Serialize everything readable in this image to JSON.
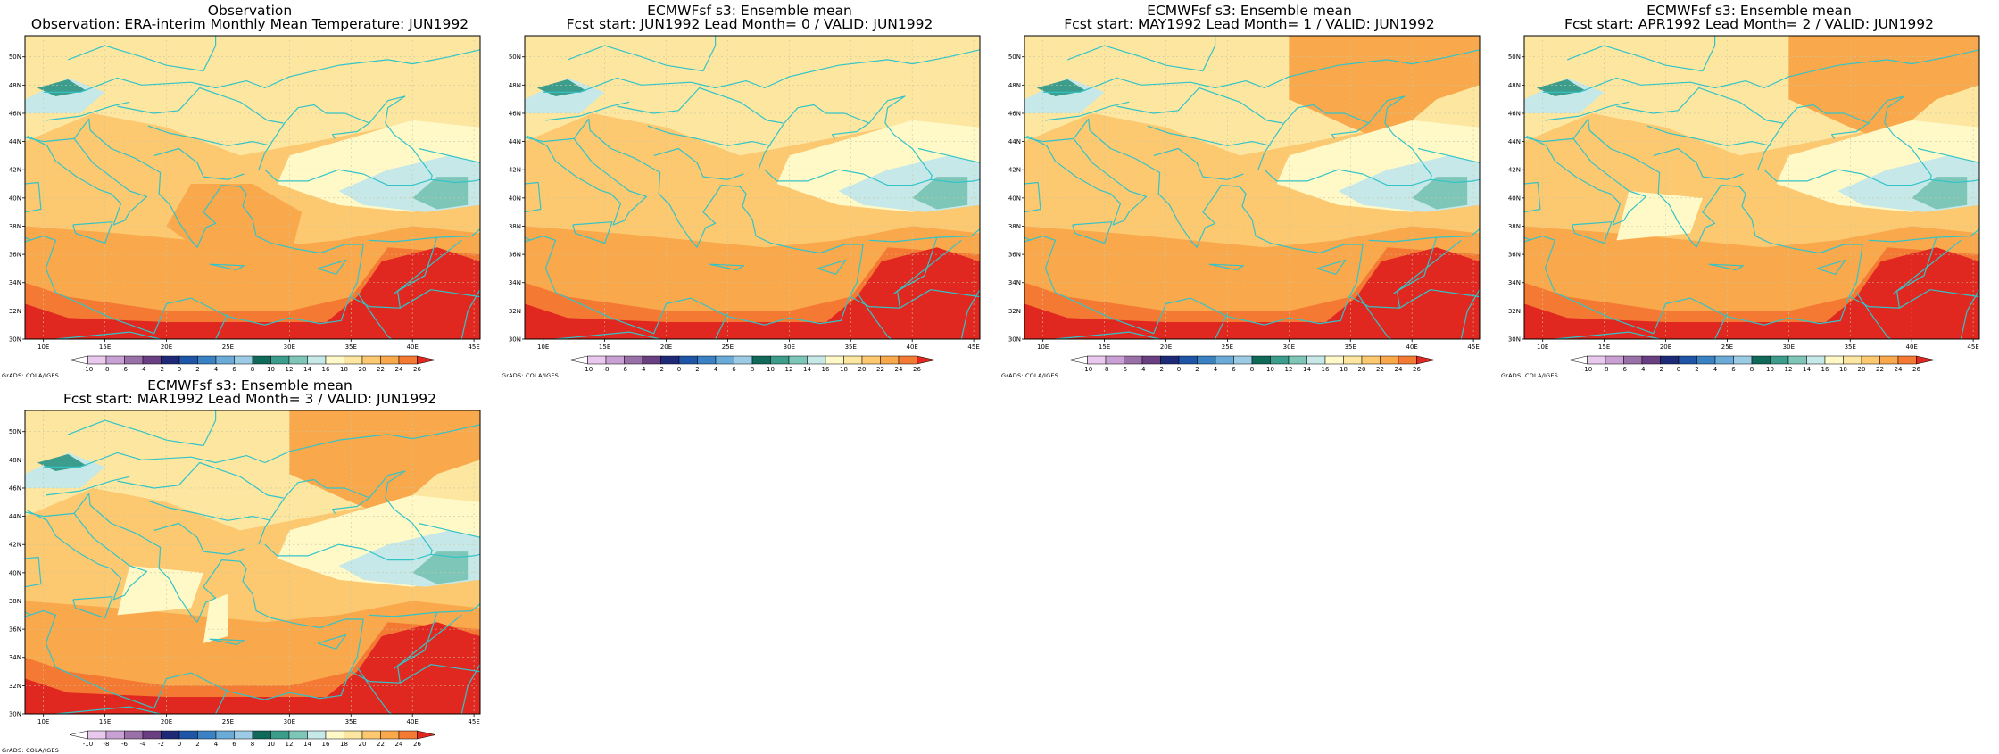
{
  "panels": [
    {
      "title_line1": "Observation",
      "title_line2": "Observation: ERA-interim Monthly Mean Temperature: JUN1992",
      "variant": 0
    },
    {
      "title_line1": "ECMWFsf s3: Ensemble mean",
      "title_line2": "Fcst start: JUN1992  Lead Month= 0 / VALID: JUN1992",
      "variant": 1
    },
    {
      "title_line1": "ECMWFsf s3: Ensemble mean",
      "title_line2": "Fcst start: MAY1992  Lead Month= 1 / VALID: JUN1992",
      "variant": 2
    },
    {
      "title_line1": "ECMWFsf s3: Ensemble mean",
      "title_line2": "Fcst start: APR1992  Lead Month= 2 / VALID: JUN1992",
      "variant": 3
    },
    {
      "title_line1": "ECMWFsf s3: Ensemble mean",
      "title_line2": "Fcst start: MAR1992  Lead Month= 3 / VALID: JUN1992",
      "variant": 4
    }
  ],
  "lat_labels": [
    "30N",
    "32N",
    "34N",
    "36N",
    "38N",
    "40N",
    "42N",
    "44N",
    "46N",
    "48N",
    "50N"
  ],
  "lon_labels": [
    "10E",
    "15E",
    "20E",
    "25E",
    "30E",
    "35E",
    "40E",
    "45E"
  ],
  "colorbar": {
    "labels": [
      "-10",
      "-8",
      "-6",
      "-4",
      "-2",
      "0",
      "2",
      "4",
      "6",
      "8",
      "10",
      "12",
      "14",
      "16",
      "18",
      "20",
      "22",
      "24",
      "26"
    ],
    "colors": [
      "#ffffff",
      "#e8c8ec",
      "#c9a0d4",
      "#9a70a8",
      "#6a3f82",
      "#1e2a78",
      "#1f55a6",
      "#3b82c4",
      "#6aabd8",
      "#9ccbe6",
      "#0f6a5a",
      "#3c9d8c",
      "#7ec7b8",
      "#c6e8e8",
      "#fff9c8",
      "#fde6a0",
      "#fcc870",
      "#f9a84c",
      "#f47a34",
      "#e02820"
    ],
    "shades_label": "GrADS: COLA/IGES"
  },
  "map_colors": {
    "border": "#33c4c8",
    "grid": "#c8c8a0"
  }
}
